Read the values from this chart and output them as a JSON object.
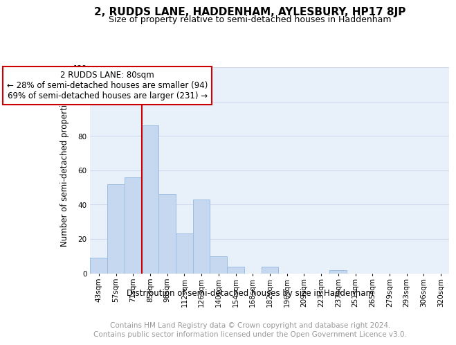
{
  "title": "2, RUDDS LANE, HADDENHAM, AYLESBURY, HP17 8JP",
  "subtitle": "Size of property relative to semi-detached houses in Haddenham",
  "xlabel": "Distribution of semi-detached houses by size in Haddenham",
  "ylabel": "Number of semi-detached properties",
  "footer_line1": "Contains HM Land Registry data © Crown copyright and database right 2024.",
  "footer_line2": "Contains public sector information licensed under the Open Government Licence v3.0.",
  "annotation_title": "2 RUDDS LANE: 80sqm",
  "annotation_line1": "← 28% of semi-detached houses are smaller (94)",
  "annotation_line2": "69% of semi-detached houses are larger (231) →",
  "categories": [
    "43sqm",
    "57sqm",
    "71sqm",
    "85sqm",
    "98sqm",
    "112sqm",
    "126sqm",
    "140sqm",
    "154sqm",
    "168sqm",
    "182sqm",
    "196sqm",
    "209sqm",
    "223sqm",
    "237sqm",
    "251sqm",
    "265sqm",
    "279sqm",
    "293sqm",
    "306sqm",
    "320sqm"
  ],
  "values": [
    9,
    52,
    56,
    86,
    46,
    23,
    43,
    10,
    4,
    0,
    4,
    0,
    0,
    0,
    2,
    0,
    0,
    0,
    0,
    0,
    0
  ],
  "vline_index": 3,
  "bar_color": "#c5d8f0",
  "bar_edge_color": "#9bbde0",
  "annotation_box_facecolor": "#ffffff",
  "annotation_box_edgecolor": "#cc0000",
  "vline_color": "#cc0000",
  "ylim": [
    0,
    120
  ],
  "yticks": [
    0,
    20,
    40,
    60,
    80,
    100,
    120
  ],
  "grid_color": "#d0daea",
  "bg_color": "#e8f0fa",
  "title_fontsize": 11,
  "subtitle_fontsize": 9,
  "axis_label_fontsize": 8.5,
  "tick_fontsize": 7.5,
  "annotation_fontsize": 8.5,
  "footer_fontsize": 7.5
}
